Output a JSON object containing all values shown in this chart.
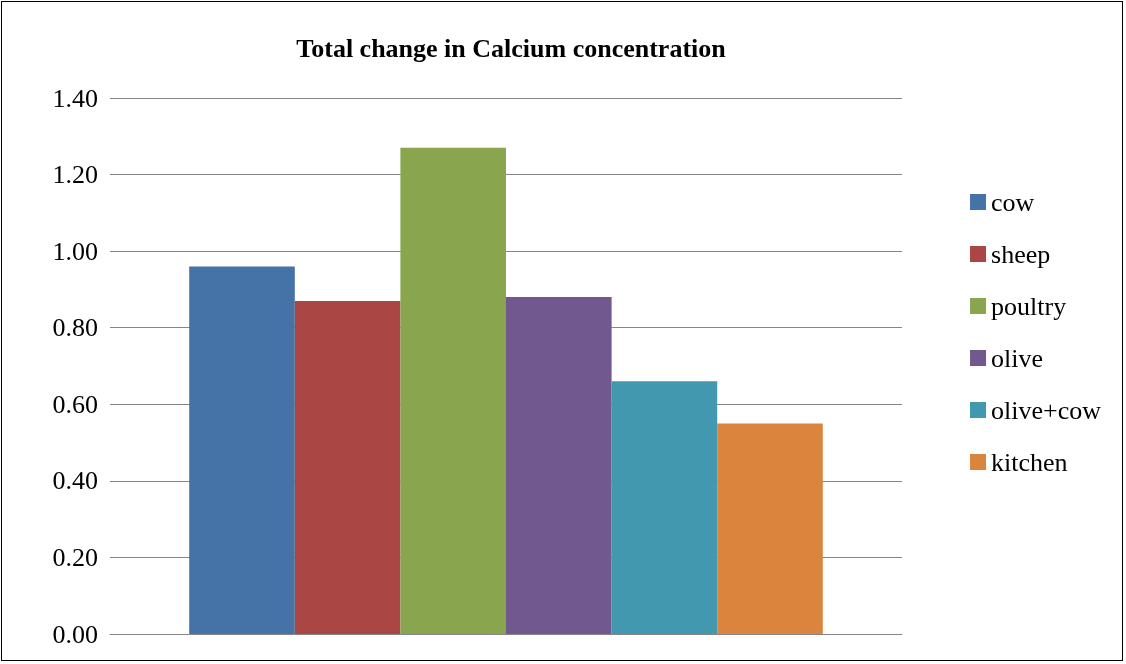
{
  "chart_data": {
    "type": "bar",
    "title": "Total change in Calcium concentration",
    "categories": [
      null
    ],
    "series": [
      {
        "name": "cow",
        "color": "#4572a7",
        "values": [
          0.96
        ]
      },
      {
        "name": "sheep",
        "color": "#aa4643",
        "values": [
          0.87
        ]
      },
      {
        "name": "poultry",
        "color": "#89a54e",
        "values": [
          1.27
        ]
      },
      {
        "name": "olive",
        "color": "#71588f",
        "values": [
          0.88
        ]
      },
      {
        "name": "olive+cow",
        "color": "#4198af",
        "values": [
          0.66
        ]
      },
      {
        "name": "kitchen",
        "color": "#db843d",
        "values": [
          0.55
        ]
      }
    ],
    "ylim": [
      0,
      1.4
    ],
    "yticks": [
      {
        "value": 0,
        "label": "0.00"
      },
      {
        "value": 0.2,
        "label": "0.20"
      },
      {
        "value": 0.4,
        "label": "0.40"
      },
      {
        "value": 0.6,
        "label": "0.60"
      },
      {
        "value": 0.8,
        "label": "0.80"
      },
      {
        "value": 1.0,
        "label": "1.00"
      },
      {
        "value": 1.2,
        "label": "1.20"
      },
      {
        "value": 1.4,
        "label": "1.40"
      }
    ],
    "grid": "y",
    "legend": "right"
  }
}
